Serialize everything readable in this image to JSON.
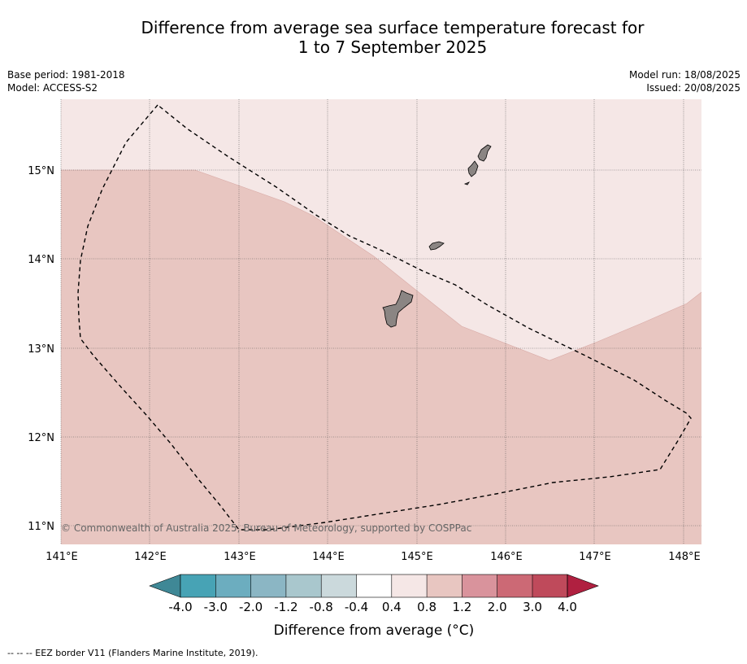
{
  "title": {
    "line1": "Difference from average sea surface temperature forecast for",
    "line2": "1 to 7 September 2025"
  },
  "meta_left": {
    "base_period": "Base period: 1981-2018",
    "model": "Model: ACCESS-S2"
  },
  "meta_right": {
    "model_run": "Model run: 18/08/2025",
    "issued": "Issued: 20/08/2025"
  },
  "map": {
    "lon_range": [
      141.0,
      148.2
    ],
    "lat_range": [
      10.8,
      15.8
    ],
    "lon_ticks": [
      "141°E",
      "142°E",
      "143°E",
      "144°E",
      "145°E",
      "146°E",
      "147°E",
      "148°E"
    ],
    "lat_ticks": [
      "15°N",
      "14°N",
      "13°N",
      "12°N",
      "11°N"
    ],
    "grid": true,
    "copyright": "© Commonwealth of Australia 2025, Bureau of Meteorology, supported by COSPPac",
    "fill_colors": {
      "anomaly_0.4_0.8": "#f5e7e6",
      "anomaly_0.8_1.2": "#e8c6c1",
      "land": "#8b8583",
      "eez_border": "#000000"
    }
  },
  "colorbar": {
    "labels": [
      "-4.0",
      "-3.0",
      "-2.0",
      "-1.2",
      "-0.8",
      "-0.4",
      "0.4",
      "0.8",
      "1.2",
      "2.0",
      "3.0",
      "4.0"
    ],
    "colors": [
      "#47a3b5",
      "#6cadbf",
      "#8bb6c4",
      "#a9c7cd",
      "#cbd9dc",
      "#ffffff",
      "#f5e7e6",
      "#e8c6c1",
      "#d9939c",
      "#cc6975",
      "#bf4a5b"
    ],
    "under_color": "#3f8896",
    "over_color": "#b02040",
    "title": "Difference from average (°C)"
  },
  "footnote": "-- -- -- EEZ border V11 (Flanders Marine Institute, 2019)."
}
